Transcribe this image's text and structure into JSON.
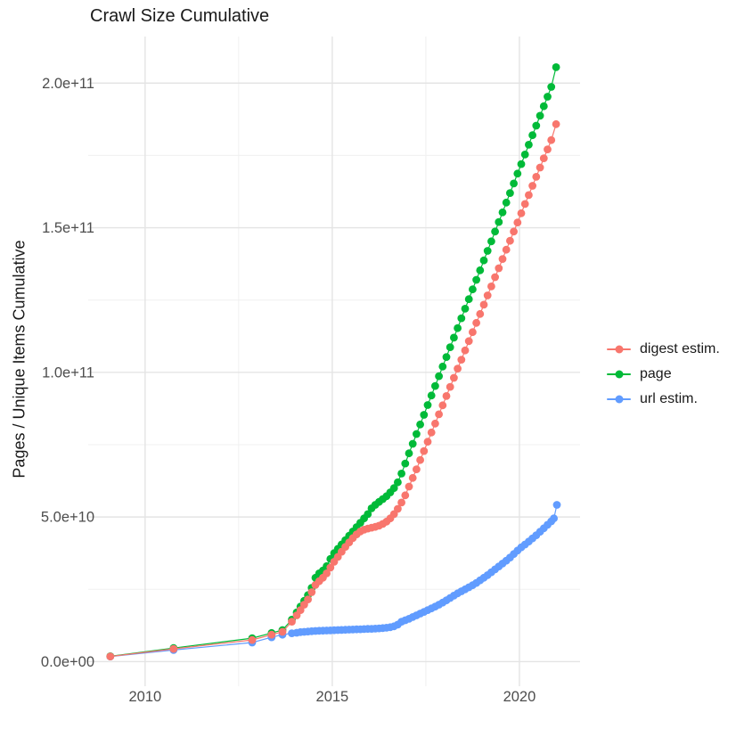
{
  "title": "Crawl Size Cumulative",
  "y_axis_title": "Pages / Unique Items Cumulative",
  "legend": {
    "items": [
      {
        "label": "digest estim.",
        "color": "#F8766D"
      },
      {
        "label": "page",
        "color": "#00BA38"
      },
      {
        "label": "url estim.",
        "color": "#619CFF"
      }
    ]
  },
  "chart_data": {
    "type": "line",
    "title": "Crawl Size Cumulative",
    "xlabel": "",
    "ylabel": "Pages / Unique Items Cumulative",
    "grid": true,
    "legend_position": "right",
    "xlim": [
      2008.48,
      2021.62
    ],
    "ylim": [
      -8500000000.0,
      216100000000.0
    ],
    "x_ticks": [
      2010,
      2015,
      2020
    ],
    "x_tick_labels": [
      "2010",
      "2015",
      "2020"
    ],
    "x_minor_ticks": [
      2012.5,
      2017.5
    ],
    "y_ticks": [
      0,
      50000000000.0,
      100000000000.0,
      150000000000.0,
      200000000000.0
    ],
    "y_tick_labels": [
      "0.0e+00",
      "5.0e+10",
      "1.0e+11",
      "1.5e+11",
      "2.0e+11"
    ],
    "y_minor_ticks": [
      25000000000.0,
      75000000000.0,
      125000000000.0,
      175000000000.0
    ],
    "series": [
      {
        "name": "digest estim.",
        "color": "#F8766D",
        "points": [
          [
            2009.07,
            1800000000.0
          ],
          [
            2010.76,
            4400000000.0
          ],
          [
            2012.86,
            7500000000.0
          ],
          [
            2013.38,
            9300000000.0
          ],
          [
            2013.67,
            10300000000.0
          ],
          [
            2013.92,
            13800000000.0
          ],
          [
            2014.05,
            16000000000.0
          ],
          [
            2014.15,
            17800000000.0
          ],
          [
            2014.25,
            19700000000.0
          ],
          [
            2014.35,
            21500000000.0
          ],
          [
            2014.45,
            24000000000.0
          ],
          [
            2014.55,
            26500000000.0
          ],
          [
            2014.65,
            27800000000.0
          ],
          [
            2014.75,
            29000000000.0
          ],
          [
            2014.85,
            30500000000.0
          ],
          [
            2014.95,
            32500000000.0
          ],
          [
            2015.05,
            34500000000.0
          ],
          [
            2015.15,
            36200000000.0
          ],
          [
            2015.25,
            38000000000.0
          ],
          [
            2015.35,
            39700000000.0
          ],
          [
            2015.45,
            41200000000.0
          ],
          [
            2015.55,
            42700000000.0
          ],
          [
            2015.65,
            44000000000.0
          ],
          [
            2015.75,
            45000000000.0
          ],
          [
            2015.85,
            45600000000.0
          ],
          [
            2015.95,
            46000000000.0
          ],
          [
            2016.05,
            46300000000.0
          ],
          [
            2016.15,
            46600000000.0
          ],
          [
            2016.25,
            47000000000.0
          ],
          [
            2016.35,
            47600000000.0
          ],
          [
            2016.45,
            48400000000.0
          ],
          [
            2016.55,
            49500000000.0
          ],
          [
            2016.65,
            51000000000.0
          ],
          [
            2016.75,
            52800000000.0
          ],
          [
            2016.85,
            55000000000.0
          ],
          [
            2016.95,
            57500000000.0
          ],
          [
            2017.05,
            60500000000.0
          ],
          [
            2017.15,
            63500000000.0
          ],
          [
            2017.25,
            66500000000.0
          ],
          [
            2017.35,
            69700000000.0
          ],
          [
            2017.45,
            72800000000.0
          ],
          [
            2017.55,
            76000000000.0
          ],
          [
            2017.65,
            79200000000.0
          ],
          [
            2017.75,
            82300000000.0
          ],
          [
            2017.85,
            85500000000.0
          ],
          [
            2017.95,
            88600000000.0
          ],
          [
            2018.05,
            91800000000.0
          ],
          [
            2018.15,
            95000000000.0
          ],
          [
            2018.25,
            98100000000.0
          ],
          [
            2018.35,
            101300000000.0
          ],
          [
            2018.45,
            104400000000.0
          ],
          [
            2018.55,
            107600000000.0
          ],
          [
            2018.65,
            110800000000.0
          ],
          [
            2018.75,
            113900000000.0
          ],
          [
            2018.85,
            117100000000.0
          ],
          [
            2018.95,
            120200000000.0
          ],
          [
            2019.05,
            123400000000.0
          ],
          [
            2019.15,
            126600000000.0
          ],
          [
            2019.25,
            129700000000.0
          ],
          [
            2019.35,
            132900000000.0
          ],
          [
            2019.45,
            136000000000.0
          ],
          [
            2019.55,
            139200000000.0
          ],
          [
            2019.65,
            142400000000.0
          ],
          [
            2019.75,
            145500000000.0
          ],
          [
            2019.85,
            148700000000.0
          ],
          [
            2019.95,
            151800000000.0
          ],
          [
            2020.05,
            155000000000.0
          ],
          [
            2020.15,
            158200000000.0
          ],
          [
            2020.25,
            161300000000.0
          ],
          [
            2020.35,
            164500000000.0
          ],
          [
            2020.45,
            167600000000.0
          ],
          [
            2020.55,
            170800000000.0
          ],
          [
            2020.65,
            174000000000.0
          ],
          [
            2020.75,
            177100000000.0
          ],
          [
            2020.85,
            180300000000.0
          ],
          [
            2020.98,
            185800000000.0
          ]
        ]
      },
      {
        "name": "page",
        "color": "#00BA38",
        "points": [
          [
            2009.07,
            1850000000.0
          ],
          [
            2010.76,
            4700000000.0
          ],
          [
            2012.86,
            8100000000.0
          ],
          [
            2013.38,
            9900000000.0
          ],
          [
            2013.67,
            10900000000.0
          ],
          [
            2013.92,
            14500000000.0
          ],
          [
            2014.05,
            17000000000.0
          ],
          [
            2014.15,
            19000000000.0
          ],
          [
            2014.25,
            21000000000.0
          ],
          [
            2014.35,
            23000000000.0
          ],
          [
            2014.45,
            25500000000.0
          ],
          [
            2014.55,
            29000000000.0
          ],
          [
            2014.65,
            30500000000.0
          ],
          [
            2014.75,
            31500000000.0
          ],
          [
            2014.85,
            33000000000.0
          ],
          [
            2014.95,
            35500000000.0
          ],
          [
            2015.05,
            37500000000.0
          ],
          [
            2015.15,
            39000000000.0
          ],
          [
            2015.25,
            40500000000.0
          ],
          [
            2015.35,
            42000000000.0
          ],
          [
            2015.45,
            43500000000.0
          ],
          [
            2015.55,
            45000000000.0
          ],
          [
            2015.65,
            46500000000.0
          ],
          [
            2015.75,
            48000000000.0
          ],
          [
            2015.85,
            49500000000.0
          ],
          [
            2015.95,
            51000000000.0
          ],
          [
            2016.05,
            53000000000.0
          ],
          [
            2016.15,
            54200000000.0
          ],
          [
            2016.25,
            55200000000.0
          ],
          [
            2016.35,
            56200000000.0
          ],
          [
            2016.45,
            57200000000.0
          ],
          [
            2016.55,
            58500000000.0
          ],
          [
            2016.65,
            60000000000.0
          ],
          [
            2016.75,
            62000000000.0
          ],
          [
            2016.85,
            65000000000.0
          ],
          [
            2016.95,
            68500000000.0
          ],
          [
            2017.05,
            72000000000.0
          ],
          [
            2017.15,
            75300000000.0
          ],
          [
            2017.25,
            78700000000.0
          ],
          [
            2017.35,
            82000000000.0
          ],
          [
            2017.45,
            85300000000.0
          ],
          [
            2017.55,
            88700000000.0
          ],
          [
            2017.65,
            92000000000.0
          ],
          [
            2017.75,
            95300000000.0
          ],
          [
            2017.85,
            98700000000.0
          ],
          [
            2017.95,
            102000000000.0
          ],
          [
            2018.05,
            105300000000.0
          ],
          [
            2018.15,
            108700000000.0
          ],
          [
            2018.25,
            112000000000.0
          ],
          [
            2018.35,
            115300000000.0
          ],
          [
            2018.45,
            118700000000.0
          ],
          [
            2018.55,
            122000000000.0
          ],
          [
            2018.65,
            125300000000.0
          ],
          [
            2018.75,
            128700000000.0
          ],
          [
            2018.85,
            132000000000.0
          ],
          [
            2018.95,
            135300000000.0
          ],
          [
            2019.05,
            138700000000.0
          ],
          [
            2019.15,
            142000000000.0
          ],
          [
            2019.25,
            145300000000.0
          ],
          [
            2019.35,
            148700000000.0
          ],
          [
            2019.45,
            152000000000.0
          ],
          [
            2019.55,
            155300000000.0
          ],
          [
            2019.65,
            158700000000.0
          ],
          [
            2019.75,
            162000000000.0
          ],
          [
            2019.85,
            165300000000.0
          ],
          [
            2019.95,
            168700000000.0
          ],
          [
            2020.05,
            172000000000.0
          ],
          [
            2020.15,
            175300000000.0
          ],
          [
            2020.25,
            178700000000.0
          ],
          [
            2020.35,
            182000000000.0
          ],
          [
            2020.45,
            185300000000.0
          ],
          [
            2020.55,
            188700000000.0
          ],
          [
            2020.65,
            192000000000.0
          ],
          [
            2020.75,
            195300000000.0
          ],
          [
            2020.85,
            198700000000.0
          ],
          [
            2020.98,
            205500000000.0
          ]
        ]
      },
      {
        "name": "url estim.",
        "color": "#619CFF",
        "points": [
          [
            2009.07,
            1750000000.0
          ],
          [
            2010.76,
            4000000000.0
          ],
          [
            2012.86,
            6600000000.0
          ],
          [
            2013.38,
            8400000000.0
          ],
          [
            2013.67,
            9300000000.0
          ],
          [
            2013.92,
            9800000000.0
          ],
          [
            2014.05,
            10000000000.0
          ],
          [
            2014.15,
            10200000000.0
          ],
          [
            2014.25,
            10300000000.0
          ],
          [
            2014.35,
            10400000000.0
          ],
          [
            2014.45,
            10500000000.0
          ],
          [
            2014.55,
            10600000000.0
          ],
          [
            2014.65,
            10650000000.0
          ],
          [
            2014.75,
            10700000000.0
          ],
          [
            2014.85,
            10750000000.0
          ],
          [
            2014.95,
            10800000000.0
          ],
          [
            2015.05,
            10850000000.0
          ],
          [
            2015.15,
            10900000000.0
          ],
          [
            2015.25,
            10950000000.0
          ],
          [
            2015.35,
            11000000000.0
          ],
          [
            2015.45,
            11050000000.0
          ],
          [
            2015.55,
            11100000000.0
          ],
          [
            2015.65,
            11150000000.0
          ],
          [
            2015.75,
            11200000000.0
          ],
          [
            2015.85,
            11250000000.0
          ],
          [
            2015.95,
            11300000000.0
          ],
          [
            2016.05,
            11350000000.0
          ],
          [
            2016.15,
            11400000000.0
          ],
          [
            2016.25,
            11500000000.0
          ],
          [
            2016.35,
            11600000000.0
          ],
          [
            2016.45,
            11700000000.0
          ],
          [
            2016.55,
            11900000000.0
          ],
          [
            2016.65,
            12200000000.0
          ],
          [
            2016.75,
            12800000000.0
          ],
          [
            2016.85,
            13800000000.0
          ],
          [
            2016.95,
            14300000000.0
          ],
          [
            2017.05,
            14800000000.0
          ],
          [
            2017.15,
            15400000000.0
          ],
          [
            2017.25,
            16000000000.0
          ],
          [
            2017.35,
            16600000000.0
          ],
          [
            2017.45,
            17200000000.0
          ],
          [
            2017.55,
            17800000000.0
          ],
          [
            2017.65,
            18400000000.0
          ],
          [
            2017.75,
            19000000000.0
          ],
          [
            2017.85,
            19700000000.0
          ],
          [
            2017.95,
            20400000000.0
          ],
          [
            2018.05,
            21200000000.0
          ],
          [
            2018.15,
            22000000000.0
          ],
          [
            2018.25,
            22800000000.0
          ],
          [
            2018.35,
            23600000000.0
          ],
          [
            2018.45,
            24300000000.0
          ],
          [
            2018.55,
            25000000000.0
          ],
          [
            2018.65,
            25700000000.0
          ],
          [
            2018.75,
            26400000000.0
          ],
          [
            2018.85,
            27200000000.0
          ],
          [
            2018.95,
            28100000000.0
          ],
          [
            2019.05,
            29000000000.0
          ],
          [
            2019.15,
            29900000000.0
          ],
          [
            2019.25,
            30900000000.0
          ],
          [
            2019.35,
            31900000000.0
          ],
          [
            2019.45,
            32900000000.0
          ],
          [
            2019.55,
            33900000000.0
          ],
          [
            2019.65,
            34900000000.0
          ],
          [
            2019.75,
            36000000000.0
          ],
          [
            2019.85,
            37200000000.0
          ],
          [
            2019.95,
            38400000000.0
          ],
          [
            2020.05,
            39500000000.0
          ],
          [
            2020.15,
            40500000000.0
          ],
          [
            2020.25,
            41500000000.0
          ],
          [
            2020.35,
            42600000000.0
          ],
          [
            2020.45,
            43700000000.0
          ],
          [
            2020.55,
            44900000000.0
          ],
          [
            2020.65,
            46100000000.0
          ],
          [
            2020.75,
            47300000000.0
          ],
          [
            2020.85,
            48500000000.0
          ],
          [
            2020.92,
            49500000000.0
          ],
          [
            2021.0,
            54200000000.0
          ]
        ]
      }
    ]
  },
  "style": {
    "grid_major_color": "#E4E4E4",
    "grid_minor_color": "#F0F0F0",
    "tick_label_color": "#4D4D4D",
    "point_radius": 4.4
  }
}
